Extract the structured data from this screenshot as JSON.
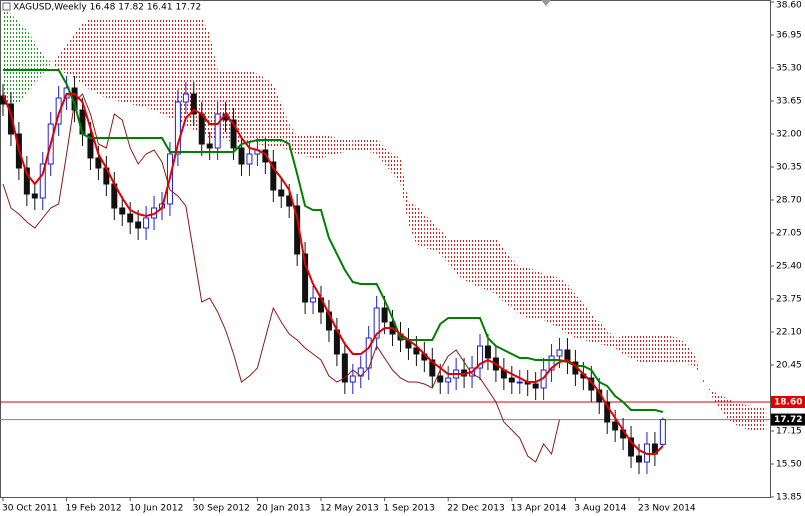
{
  "chart_data": {
    "type": "ichimoku",
    "title": "XAGUSD,Weekly  16.48 17.82 16.41 17.72",
    "categories": [
      "30 Oct 2011",
      null,
      null,
      null,
      null,
      null,
      null,
      null,
      "19 Feb 2012",
      null,
      null,
      null,
      null,
      null,
      null,
      null,
      "10 Jun 2012",
      null,
      null,
      null,
      null,
      null,
      null,
      null,
      "30 Sep 2012",
      null,
      null,
      null,
      null,
      null,
      null,
      null,
      "20 Jan 2013",
      null,
      null,
      null,
      null,
      null,
      null,
      null,
      "12 May 2013",
      null,
      null,
      null,
      null,
      null,
      null,
      null,
      "1 Sep 2013",
      null,
      null,
      null,
      null,
      null,
      null,
      null,
      "22 Dec 2013",
      null,
      null,
      null,
      null,
      null,
      null,
      null,
      "13 Apr 2014",
      null,
      null,
      null,
      null,
      null,
      null,
      null,
      "3 Aug 2014",
      null,
      null,
      null,
      null,
      null,
      null,
      null,
      "23 Nov 2014",
      null,
      null,
      null,
      null,
      null,
      null,
      null,
      null,
      null,
      null,
      null,
      null,
      null,
      null,
      null,
      null
    ],
    "open": [
      33.9,
      33.5,
      32.0,
      30.3,
      29.0,
      28.8,
      30.5,
      32.5,
      33.8,
      34.3,
      33.2,
      32.0,
      30.8,
      30.3,
      29.5,
      28.3,
      28.0,
      27.6,
      27.3,
      27.8,
      28.3,
      28.5,
      31.0,
      33.6,
      34.0,
      33.0,
      31.5,
      31.3,
      33.0,
      32.7,
      31.3,
      30.5,
      31.0,
      31.2,
      30.6,
      29.2,
      28.9,
      28.4,
      26.0,
      23.6,
      23.8,
      23.1,
      22.2,
      21.0,
      19.6,
      19.9,
      20.3,
      21.8,
      23.3,
      22.6,
      22.0,
      21.7,
      21.3,
      21.0,
      20.7,
      19.9,
      19.6,
      19.8,
      20.2,
      19.9,
      20.3,
      21.4,
      20.8,
      20.2,
      19.8,
      19.6,
      19.6,
      19.5,
      19.3,
      20.2,
      20.9,
      21.2,
      20.6,
      20.0,
      19.8,
      19.2,
      18.6,
      17.6,
      17.2,
      16.8,
      15.9,
      15.6,
      16.5,
      16.48,
      null,
      null,
      null,
      null,
      null,
      null,
      null,
      null,
      null,
      null,
      null,
      null,
      null
    ],
    "high": [
      34.5,
      34.1,
      32.6,
      30.9,
      29.6,
      31.1,
      33.1,
      34.4,
      34.9,
      34.9,
      33.8,
      32.6,
      31.4,
      30.9,
      30.1,
      28.9,
      28.6,
      28.2,
      28.4,
      28.9,
      29.1,
      31.6,
      34.2,
      34.6,
      34.6,
      33.6,
      32.1,
      33.6,
      33.6,
      33.3,
      31.9,
      31.6,
      31.8,
      31.8,
      31.2,
      29.8,
      29.5,
      29.0,
      26.6,
      24.4,
      24.4,
      23.7,
      22.8,
      21.6,
      20.5,
      20.9,
      22.4,
      23.9,
      23.9,
      23.2,
      22.6,
      22.3,
      21.9,
      21.6,
      21.3,
      20.5,
      20.4,
      20.8,
      20.8,
      20.9,
      22.0,
      22.0,
      21.4,
      20.8,
      20.4,
      20.2,
      20.2,
      20.1,
      20.8,
      21.5,
      21.8,
      21.8,
      21.2,
      20.6,
      20.4,
      19.8,
      19.2,
      18.2,
      17.8,
      17.4,
      16.5,
      17.1,
      17.1,
      17.82,
      null,
      null,
      null,
      null,
      null,
      null,
      null,
      null,
      null,
      null,
      null,
      null,
      null
    ],
    "low": [
      32.9,
      31.4,
      29.7,
      28.4,
      28.2,
      28.2,
      29.9,
      31.9,
      33.2,
      32.6,
      31.4,
      30.2,
      29.7,
      28.9,
      27.7,
      27.4,
      27.0,
      26.7,
      26.7,
      27.2,
      27.7,
      27.9,
      30.4,
      33.0,
      32.4,
      30.9,
      30.7,
      30.7,
      32.1,
      30.7,
      29.9,
      29.9,
      30.4,
      30.0,
      28.6,
      28.3,
      27.8,
      25.4,
      23.0,
      23.0,
      22.5,
      21.6,
      20.4,
      19.0,
      19.0,
      19.3,
      19.7,
      21.2,
      22.0,
      21.4,
      21.1,
      20.7,
      20.4,
      20.1,
      19.3,
      19.0,
      19.0,
      19.2,
      19.3,
      19.3,
      19.7,
      20.2,
      19.6,
      19.2,
      19.0,
      19.0,
      18.9,
      18.7,
      18.7,
      19.6,
      20.3,
      20.0,
      19.4,
      19.2,
      18.6,
      18.0,
      17.0,
      16.6,
      16.2,
      15.3,
      15.0,
      15.0,
      15.4,
      16.41,
      null,
      null,
      null,
      null,
      null,
      null,
      null,
      null,
      null,
      null,
      null,
      null,
      null
    ],
    "close": [
      33.5,
      32.0,
      30.3,
      29.0,
      28.8,
      30.5,
      32.5,
      33.8,
      34.3,
      33.2,
      32.0,
      30.8,
      30.3,
      29.5,
      28.3,
      28.0,
      27.6,
      27.3,
      27.8,
      28.3,
      28.5,
      31.0,
      33.6,
      34.0,
      33.0,
      31.5,
      31.3,
      33.0,
      32.7,
      31.3,
      30.5,
      31.0,
      31.2,
      30.6,
      29.2,
      28.9,
      28.4,
      26.0,
      23.6,
      23.8,
      23.1,
      22.2,
      21.0,
      19.6,
      19.9,
      20.3,
      21.8,
      23.3,
      22.6,
      22.0,
      21.7,
      21.3,
      21.0,
      20.7,
      19.9,
      19.6,
      19.8,
      20.2,
      19.9,
      20.3,
      21.4,
      20.8,
      20.2,
      19.8,
      19.6,
      19.6,
      19.5,
      19.3,
      20.2,
      20.9,
      21.2,
      20.6,
      20.0,
      19.8,
      19.2,
      18.6,
      17.6,
      17.2,
      16.8,
      15.9,
      15.6,
      16.5,
      16.0,
      17.72,
      null,
      null,
      null,
      null,
      null,
      null,
      null,
      null,
      null,
      null,
      null,
      null,
      null
    ],
    "up_color": "#1f1fd0",
    "down_color": "#111111",
    "lines": [
      {
        "color": "#8b1a1a",
        "width": 1,
        "values": [
          29.5,
          28.3,
          28.0,
          27.6,
          27.3,
          27.8,
          28.3,
          28.5,
          31.0,
          33.6,
          34.0,
          33.0,
          31.5,
          31.3,
          33.0,
          32.7,
          31.3,
          30.5,
          31.0,
          31.2,
          30.6,
          29.2,
          28.9,
          28.4,
          26.0,
          23.6,
          23.8,
          23.1,
          22.2,
          21.0,
          19.6,
          19.9,
          20.3,
          21.8,
          23.3,
          22.6,
          22.0,
          21.7,
          21.3,
          21.0,
          20.7,
          19.9,
          19.6,
          19.8,
          20.2,
          19.9,
          20.3,
          21.4,
          20.8,
          20.2,
          19.8,
          19.6,
          19.6,
          19.5,
          19.3,
          20.2,
          20.9,
          21.2,
          20.6,
          20.0,
          19.8,
          19.2,
          18.6,
          17.6,
          17.2,
          16.8,
          15.9,
          15.6,
          16.5,
          16.0,
          17.72,
          null,
          null,
          null,
          null,
          null,
          null,
          null,
          null,
          null,
          null,
          null,
          null,
          null,
          null,
          null,
          null,
          null,
          null,
          null,
          null,
          null,
          null,
          null,
          null,
          null
        ]
      },
      {
        "color": "#008000",
        "width": 2,
        "values": [
          35.2,
          35.2,
          35.2,
          35.2,
          35.2,
          35.2,
          35.2,
          35.2,
          34.5,
          33.5,
          32.0,
          31.8,
          31.8,
          31.8,
          31.8,
          31.8,
          31.8,
          31.8,
          31.8,
          31.8,
          31.8,
          31.1,
          31.1,
          31.1,
          31.1,
          31.1,
          31.1,
          31.1,
          31.1,
          31.1,
          31.5,
          31.6,
          31.7,
          31.7,
          31.7,
          31.7,
          31.5,
          30.0,
          28.4,
          28.2,
          28.2,
          26.8,
          26.0,
          25.2,
          24.6,
          24.5,
          24.5,
          24.5,
          23.7,
          22.8,
          21.8,
          21.7,
          21.7,
          21.7,
          21.7,
          22.5,
          22.8,
          22.8,
          22.8,
          22.8,
          22.8,
          21.8,
          21.4,
          21.2,
          21.0,
          20.8,
          20.8,
          20.7,
          20.7,
          20.7,
          20.7,
          20.6,
          20.4,
          20.4,
          20.2,
          19.6,
          19.4,
          18.9,
          18.6,
          18.2,
          18.2,
          18.2,
          18.2,
          18.1,
          null,
          null,
          null,
          null,
          null,
          null,
          null,
          null,
          null,
          null,
          null,
          null,
          null
        ]
      },
      {
        "color": "#e00000",
        "width": 2,
        "values": [
          34.0,
          33.0,
          31.2,
          30.0,
          29.5,
          30.0,
          31.5,
          33.0,
          34.0,
          34.0,
          33.6,
          32.3,
          31.0,
          30.3,
          29.5,
          28.8,
          28.2,
          28.0,
          27.9,
          28.0,
          28.3,
          29.8,
          31.5,
          32.8,
          33.2,
          33.0,
          32.5,
          32.5,
          33.0,
          32.5,
          31.8,
          31.3,
          31.2,
          31.0,
          30.3,
          29.8,
          29.2,
          27.8,
          25.5,
          24.5,
          23.8,
          23.0,
          22.2,
          21.5,
          21.0,
          21.0,
          21.3,
          22.0,
          22.3,
          22.3,
          22.0,
          21.7,
          21.4,
          21.0,
          20.6,
          20.3,
          20.0,
          20.0,
          20.0,
          20.1,
          20.5,
          20.7,
          20.5,
          20.2,
          20.0,
          19.8,
          19.6,
          19.6,
          19.8,
          20.3,
          20.6,
          20.7,
          20.4,
          20.0,
          19.6,
          19.1,
          18.4,
          17.8,
          17.2,
          16.6,
          16.2,
          16.0,
          16.0,
          16.4,
          null,
          null,
          null,
          null,
          null,
          null,
          null,
          null,
          null,
          null,
          null,
          null,
          null
        ]
      }
    ],
    "cloud": {
      "up_color": "#1a9a1a",
      "down_color": "#d21e1e",
      "span_a": [
        38.3,
        38.0,
        37.6,
        37.2,
        36.6,
        36.0,
        35.6,
        35.2,
        35.0,
        34.8,
        34.5,
        34.2,
        34.0,
        33.8,
        33.7,
        33.6,
        33.5,
        33.4,
        33.3,
        33.2,
        33.0,
        32.8,
        32.6,
        32.4,
        32.2,
        32.0,
        31.8,
        31.8,
        31.7,
        31.6,
        31.6,
        31.5,
        31.5,
        31.4,
        31.4,
        31.3,
        31.2,
        31.0,
        30.9,
        30.8,
        30.8,
        30.9,
        31.0,
        31.1,
        31.2,
        31.2,
        31.1,
        31.0,
        30.5,
        30.0,
        29.5,
        27.5,
        26.5,
        26.3,
        26.2,
        26.0,
        25.5,
        25.0,
        24.7,
        24.5,
        24.3,
        24.2,
        24.0,
        23.6,
        23.3,
        23.0,
        22.8,
        22.7,
        22.7,
        22.5,
        22.3,
        22.0,
        21.8,
        21.7,
        21.6,
        21.5,
        21.4,
        21.3,
        21.0,
        20.8,
        20.6,
        20.5,
        20.5,
        20.6,
        20.6,
        20.6,
        20.5,
        20.4,
        19.8,
        19.0,
        18.3,
        17.8,
        17.5,
        17.3,
        17.2,
        17.1,
        17.1
      ],
      "span_b": [
        33.5,
        33.5,
        33.5,
        34.0,
        34.5,
        35.0,
        35.5,
        36.0,
        36.5,
        37.0,
        37.5,
        37.8,
        37.8,
        37.8,
        37.8,
        37.8,
        37.8,
        37.8,
        37.8,
        37.8,
        37.8,
        37.8,
        37.8,
        37.8,
        37.8,
        37.8,
        37.0,
        35.2,
        35.2,
        35.2,
        35.2,
        35.2,
        35.0,
        34.8,
        34.5,
        33.5,
        32.5,
        31.9,
        31.9,
        31.9,
        31.9,
        31.9,
        31.8,
        31.8,
        31.8,
        31.8,
        31.8,
        31.8,
        31.3,
        31.0,
        30.8,
        28.6,
        28.4,
        28.0,
        27.6,
        27.2,
        26.8,
        26.8,
        26.8,
        26.8,
        26.8,
        26.8,
        26.8,
        26.3,
        25.8,
        25.3,
        25.3,
        25.2,
        25.0,
        24.9,
        24.8,
        24.5,
        24.0,
        23.5,
        23.0,
        22.6,
        22.2,
        21.8,
        21.9,
        21.9,
        21.9,
        21.9,
        21.9,
        21.9,
        21.9,
        21.8,
        21.5,
        21.0,
        19.6,
        19.2,
        19.0,
        18.8,
        18.6,
        18.5,
        18.4,
        18.4,
        18.4
      ]
    },
    "hlines": [
      {
        "value": 18.6,
        "label": "18.60",
        "color": "#e00000",
        "label_bg": "#e00000"
      },
      {
        "value": 17.72,
        "label": "17.72",
        "color": "#808080",
        "label_bg": "#000000"
      }
    ],
    "ylim": [
      13.85,
      38.6
    ],
    "yticks": [
      {
        "value": 38.6,
        "label": "38.60"
      },
      36.95,
      {
        "value": 35.3,
        "label": "35.30"
      },
      33.65,
      {
        "value": 32,
        "label": "32.00"
      },
      30.35,
      {
        "value": 28.7,
        "label": "28.70"
      },
      27.05,
      {
        "value": 25.4,
        "label": "25.40"
      },
      23.75,
      {
        "value": 22.1,
        "label": "22.10"
      },
      20.45,
      17.15,
      {
        "value": 15.5,
        "label": "15.50"
      },
      13.85
    ]
  }
}
